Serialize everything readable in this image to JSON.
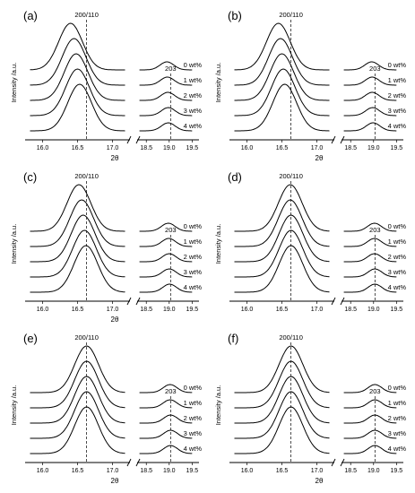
{
  "chart_data": [
    {
      "type": "line",
      "panel_label": "(a)",
      "xlabel": "2θ",
      "ylabel": "Intensity /a.u.",
      "xticks_left": [
        "16.0",
        "16.5",
        "17.0"
      ],
      "xticks_right": [
        "18.5",
        "19.0",
        "19.5"
      ],
      "xlim_left": [
        15.75,
        17.25
      ],
      "xlim_right": [
        18.3,
        19.65
      ],
      "peaks": [
        {
          "label": "200/110",
          "position": 16.63
        },
        {
          "label": "203",
          "position": 19.03
        }
      ],
      "series": [
        {
          "name": "0 wt%",
          "main_peak_x": 16.4,
          "second_peak_x": 18.95,
          "main_peak_height": 1.0
        },
        {
          "name": "1 wt%",
          "main_peak_x": 16.45,
          "second_peak_x": 18.96,
          "main_peak_height": 1.0
        },
        {
          "name": "2 wt%",
          "main_peak_x": 16.48,
          "second_peak_x": 18.97,
          "main_peak_height": 1.0
        },
        {
          "name": "3 wt%",
          "main_peak_x": 16.5,
          "second_peak_x": 18.98,
          "main_peak_height": 1.0
        },
        {
          "name": "4 wt%",
          "main_peak_x": 16.53,
          "second_peak_x": 18.98,
          "main_peak_height": 1.0
        }
      ]
    },
    {
      "type": "line",
      "panel_label": "(b)",
      "xlabel": "2θ",
      "ylabel": "Intensity /a.u.",
      "xticks_left": [
        "16.0",
        "16.5",
        "17.0"
      ],
      "xticks_right": [
        "18.5",
        "19.0",
        "19.5"
      ],
      "xlim_left": [
        15.75,
        17.25
      ],
      "xlim_right": [
        18.3,
        19.65
      ],
      "peaks": [
        {
          "label": "200/110",
          "position": 16.63
        },
        {
          "label": "203",
          "position": 19.03
        }
      ],
      "series": [
        {
          "name": "0 wt%",
          "main_peak_x": 16.45,
          "second_peak_x": 18.96,
          "main_peak_height": 1.0
        },
        {
          "name": "1 wt%",
          "main_peak_x": 16.48,
          "second_peak_x": 18.97,
          "main_peak_height": 1.0
        },
        {
          "name": "2 wt%",
          "main_peak_x": 16.5,
          "second_peak_x": 18.97,
          "main_peak_height": 1.0
        },
        {
          "name": "3 wt%",
          "main_peak_x": 16.52,
          "second_peak_x": 18.98,
          "main_peak_height": 1.0
        },
        {
          "name": "4 wt%",
          "main_peak_x": 16.54,
          "second_peak_x": 18.99,
          "main_peak_height": 1.0
        }
      ]
    },
    {
      "type": "line",
      "panel_label": "(c)",
      "xlabel": "2θ",
      "ylabel": "Intensity /a.u.",
      "xticks_left": [
        "16.0",
        "16.5",
        "17.0"
      ],
      "xticks_right": [
        "18.5",
        "19.0",
        "19.5"
      ],
      "xlim_left": [
        15.75,
        17.25
      ],
      "xlim_right": [
        18.3,
        19.65
      ],
      "peaks": [
        {
          "label": "200/110",
          "position": 16.63
        },
        {
          "label": "203",
          "position": 19.03
        }
      ],
      "series": [
        {
          "name": "0 wt%",
          "main_peak_x": 16.52,
          "second_peak_x": 18.98,
          "main_peak_height": 1.0
        },
        {
          "name": "1 wt%",
          "main_peak_x": 16.56,
          "second_peak_x": 18.99,
          "main_peak_height": 1.0
        },
        {
          "name": "2 wt%",
          "main_peak_x": 16.58,
          "second_peak_x": 19.0,
          "main_peak_height": 1.0
        },
        {
          "name": "3 wt%",
          "main_peak_x": 16.6,
          "second_peak_x": 19.0,
          "main_peak_height": 1.0
        },
        {
          "name": "4 wt%",
          "main_peak_x": 16.62,
          "second_peak_x": 19.01,
          "main_peak_height": 1.0
        }
      ]
    },
    {
      "type": "line",
      "panel_label": "(d)",
      "xlabel": "",
      "ylabel": "Intensity /a.u.",
      "xticks_left": [
        "16.0",
        "16.5",
        "17.0"
      ],
      "xticks_right": [
        "18.5",
        "19.0",
        "19.5"
      ],
      "xlim_left": [
        15.75,
        17.25
      ],
      "xlim_right": [
        18.3,
        19.65
      ],
      "peaks": [
        {
          "label": "200/110",
          "position": 16.63
        },
        {
          "label": "203",
          "position": 19.03
        }
      ],
      "series": [
        {
          "name": "0 wt%",
          "main_peak_x": 16.62,
          "second_peak_x": 19.02,
          "main_peak_height": 1.0
        },
        {
          "name": "1 wt%",
          "main_peak_x": 16.62,
          "second_peak_x": 19.02,
          "main_peak_height": 1.0
        },
        {
          "name": "2 wt%",
          "main_peak_x": 16.63,
          "second_peak_x": 19.02,
          "main_peak_height": 1.0
        },
        {
          "name": "3 wt%",
          "main_peak_x": 16.63,
          "second_peak_x": 19.03,
          "main_peak_height": 1.0
        },
        {
          "name": "4 wt%",
          "main_peak_x": 16.63,
          "second_peak_x": 19.03,
          "main_peak_height": 1.0
        }
      ]
    },
    {
      "type": "line",
      "panel_label": "(e)",
      "xlabel": "2θ",
      "ylabel": "Intensity /a.u.",
      "xticks_left": [
        "16.0",
        "16.5",
        "17.0"
      ],
      "xticks_right": [
        "18.5",
        "19.0",
        "19.5"
      ],
      "xlim_left": [
        15.75,
        17.25
      ],
      "xlim_right": [
        18.3,
        19.65
      ],
      "peaks": [
        {
          "label": "200/110",
          "position": 16.63
        },
        {
          "label": "203",
          "position": 19.03
        }
      ],
      "series": [
        {
          "name": "0 wt%",
          "main_peak_x": 16.63,
          "second_peak_x": 19.02,
          "main_peak_height": 1.0
        },
        {
          "name": "1 wt%",
          "main_peak_x": 16.63,
          "second_peak_x": 19.02,
          "main_peak_height": 1.0
        },
        {
          "name": "2 wt%",
          "main_peak_x": 16.63,
          "second_peak_x": 19.03,
          "main_peak_height": 1.0
        },
        {
          "name": "3 wt%",
          "main_peak_x": 16.63,
          "second_peak_x": 19.03,
          "main_peak_height": 1.0
        },
        {
          "name": "4 wt%",
          "main_peak_x": 16.63,
          "second_peak_x": 19.03,
          "main_peak_height": 1.0
        }
      ]
    },
    {
      "type": "line",
      "panel_label": "(f)",
      "xlabel": "2θ",
      "ylabel": "Intensity /a.u.",
      "xticks_left": [
        "16.0",
        "16.5",
        "17.0"
      ],
      "xticks_right": [
        "18.5",
        "19.0",
        "19.5"
      ],
      "xlim_left": [
        15.75,
        17.25
      ],
      "xlim_right": [
        18.3,
        19.65
      ],
      "peaks": [
        {
          "label": "200/110",
          "position": 16.63
        },
        {
          "label": "203",
          "position": 19.03
        }
      ],
      "series": [
        {
          "name": "0 wt%",
          "main_peak_x": 16.63,
          "second_peak_x": 19.03,
          "main_peak_height": 1.0
        },
        {
          "name": "1 wt%",
          "main_peak_x": 16.63,
          "second_peak_x": 19.03,
          "main_peak_height": 1.0
        },
        {
          "name": "2 wt%",
          "main_peak_x": 16.63,
          "second_peak_x": 19.03,
          "main_peak_height": 1.0
        },
        {
          "name": "3 wt%",
          "main_peak_x": 16.63,
          "second_peak_x": 19.03,
          "main_peak_height": 1.0
        },
        {
          "name": "4 wt%",
          "main_peak_x": 16.63,
          "second_peak_x": 19.03,
          "main_peak_height": 1.0
        }
      ]
    }
  ]
}
